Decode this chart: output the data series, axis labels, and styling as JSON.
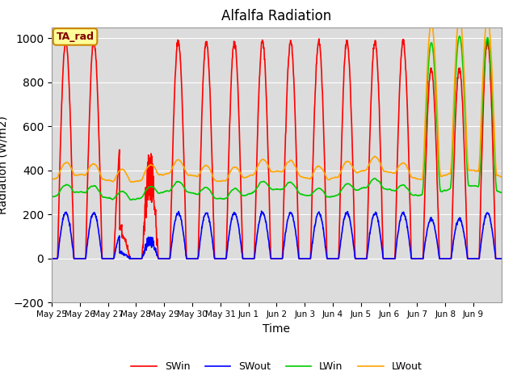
{
  "title": "Alfalfa Radiation",
  "xlabel": "Time",
  "ylabel": "Radiation (W/m2)",
  "ylim": [
    -200,
    1050
  ],
  "background_color": "#dcdcdc",
  "grid_color": "#ffffff",
  "annotation_text": "TA_rad",
  "annotation_bg": "#ffff99",
  "annotation_border": "#cc8800",
  "annotation_text_color": "#800000",
  "legend_entries": [
    "SWin",
    "SWout",
    "LWin",
    "LWout"
  ],
  "line_colors": [
    "#ff0000",
    "#0000ff",
    "#00cc00",
    "#ffa500"
  ],
  "xtick_labels": [
    "May 25",
    "May 26",
    "May 27",
    "May 28",
    "May 29",
    "May 30",
    "May 31",
    "Jun 1",
    "Jun 2",
    "Jun 3",
    "Jun 4",
    "Jun 5",
    "Jun 6",
    "Jun 7",
    "Jun 8",
    "Jun 9"
  ],
  "n_days": 16,
  "hours_per_day": 24,
  "dt_hours": 0.25
}
